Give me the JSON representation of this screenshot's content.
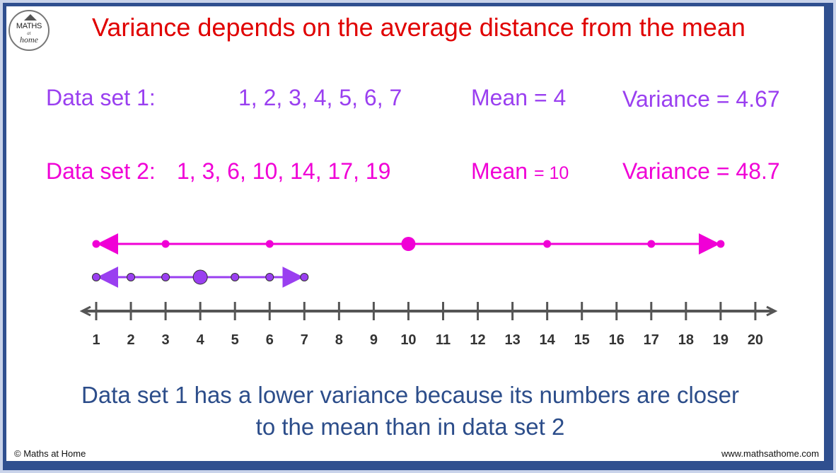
{
  "logo": {
    "line1": "MATHS",
    "line2": "at",
    "line3": "home"
  },
  "title": "Variance depends on the average distance from the mean",
  "set1": {
    "label": "Data set 1:",
    "values_text": "1, 2, 3, 4, 5, 6, 7",
    "mean_label": "Mean = ",
    "mean_value": "4",
    "variance_text": "Variance = 4.67",
    "values": [
      1,
      2,
      3,
      4,
      5,
      6,
      7
    ],
    "mean": 4,
    "color": "#9a3ff0"
  },
  "set2": {
    "label": "Data set 2:",
    "values_text": "1, 3, 6, 10, 14, 17, 19",
    "mean_label": "Mean ",
    "mean_value": "= 10",
    "variance_text": "Variance = 48.7",
    "values": [
      1,
      3,
      6,
      10,
      14,
      17,
      19
    ],
    "mean": 10,
    "color": "#f000d6"
  },
  "number_line": {
    "ticks": [
      1,
      2,
      3,
      4,
      5,
      6,
      7,
      8,
      9,
      10,
      11,
      12,
      13,
      14,
      15,
      16,
      17,
      18,
      19,
      20
    ],
    "color": "#555555"
  },
  "conclusion": {
    "line1": "Data set 1 has a lower variance because its numbers are closer",
    "line2": "to the mean than in data set 2"
  },
  "footer": {
    "copyright": "© Maths at Home",
    "website": "www.mathsathome.com"
  }
}
